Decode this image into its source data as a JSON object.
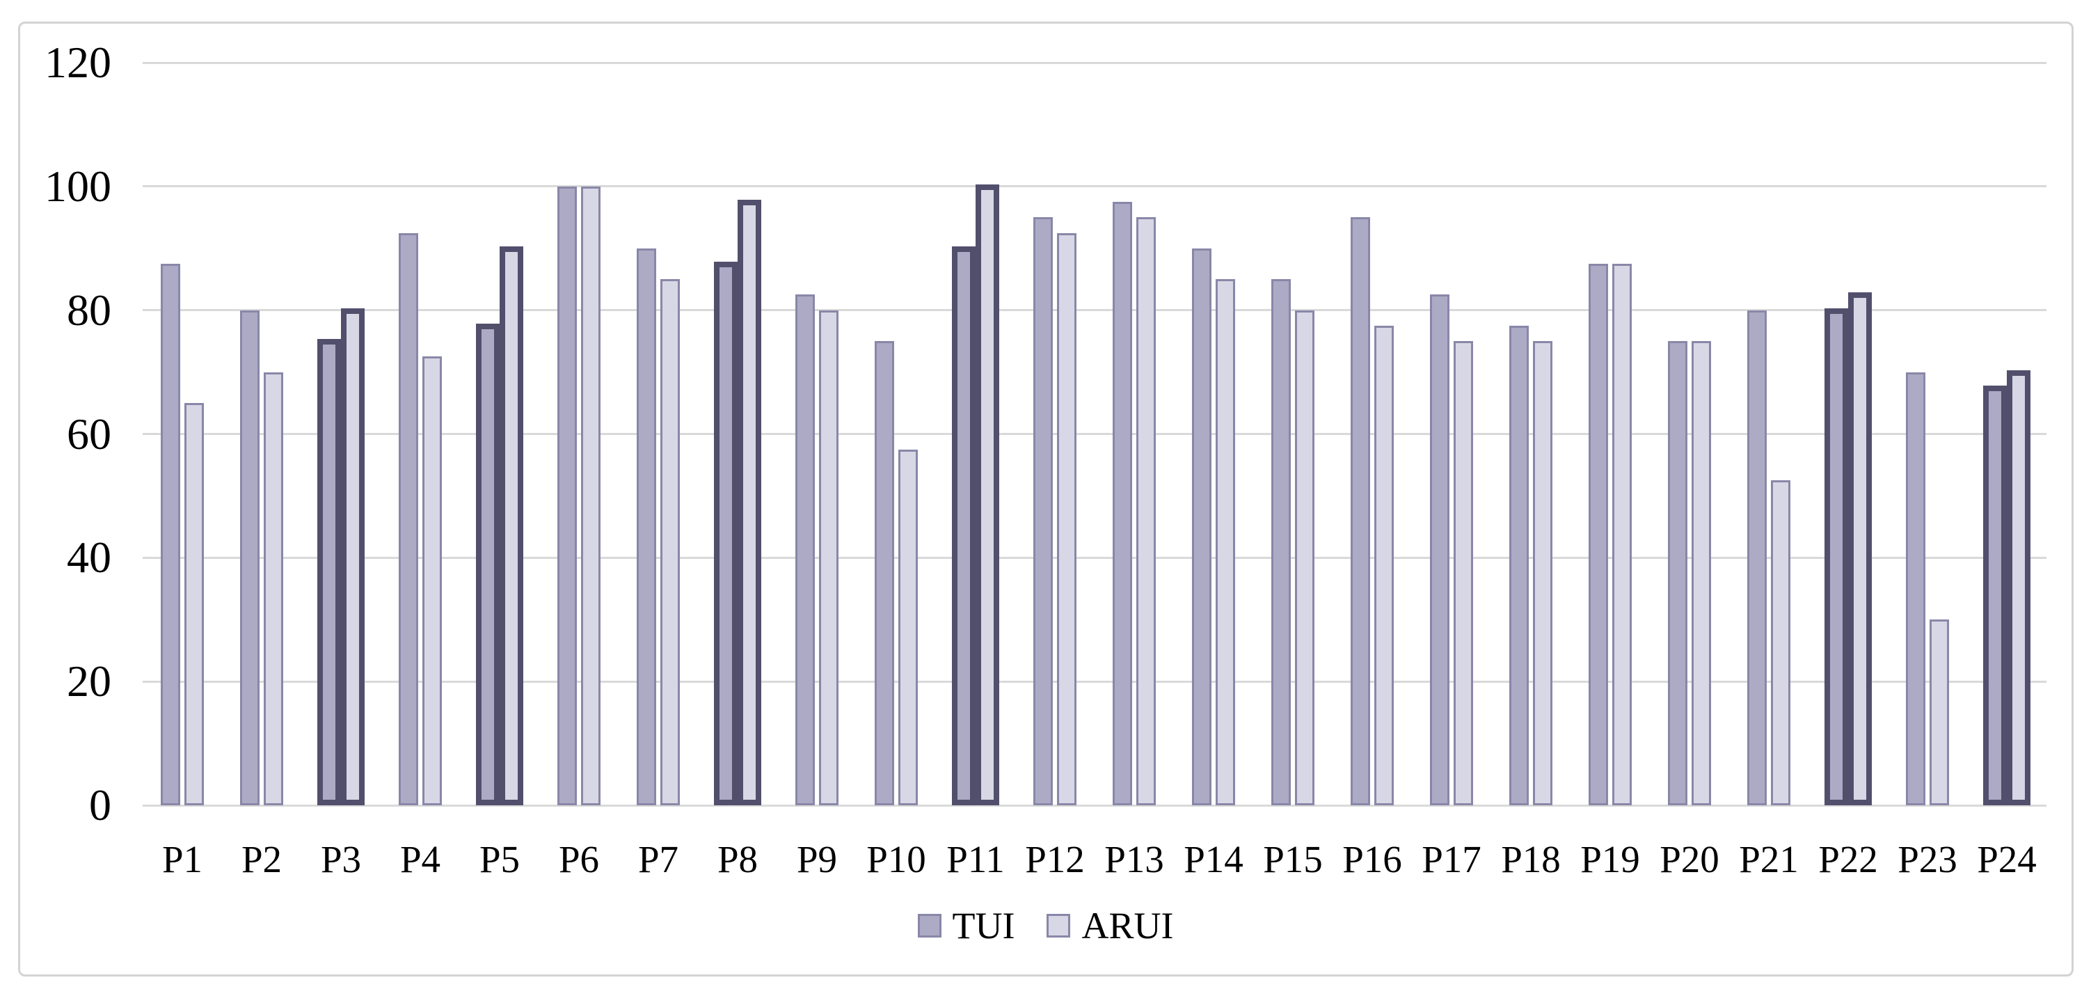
{
  "chart_data": {
    "type": "bar",
    "title": "",
    "categories": [
      "P1",
      "P2",
      "P3",
      "P4",
      "P5",
      "P6",
      "P7",
      "P8",
      "P9",
      "P10",
      "P11",
      "P12",
      "P13",
      "P14",
      "P15",
      "P16",
      "P17",
      "P18",
      "P19",
      "P20",
      "P21",
      "P22",
      "P23",
      "P24"
    ],
    "series": [
      {
        "name": "TUI",
        "values": [
          87.5,
          80,
          75,
          92.5,
          77.5,
          100,
          90,
          87.5,
          82.5,
          75,
          90,
          95,
          97.5,
          90,
          85,
          95,
          82.5,
          77.5,
          87.5,
          75,
          80,
          80,
          70,
          67.5
        ]
      },
      {
        "name": "ARUI",
        "values": [
          65,
          70,
          80,
          72.5,
          90,
          100,
          85,
          97.5,
          80,
          57.5,
          100,
          92.5,
          95,
          85,
          80,
          77.5,
          75,
          75,
          87.5,
          75,
          52.5,
          82.5,
          30,
          70
        ]
      }
    ],
    "highlighted_categories": [
      "P3",
      "P5",
      "P8",
      "P11",
      "P22",
      "P24"
    ],
    "xlabel": "",
    "ylabel": "",
    "ylim": [
      0,
      120
    ],
    "y_ticks": [
      0,
      20,
      40,
      60,
      80,
      100,
      120
    ],
    "grid": true,
    "legend_position": "bottom",
    "legend": [
      "TUI",
      "ARUI"
    ],
    "colors": {
      "tui_fill": "#adaac5",
      "arui_fill": "#d8d7e5",
      "bar_border": "#8987a8",
      "highlight_border": "#524f6d",
      "gridline": "#d9d9d9",
      "frame_border": "#d3d3d3",
      "text": "#000000"
    }
  }
}
